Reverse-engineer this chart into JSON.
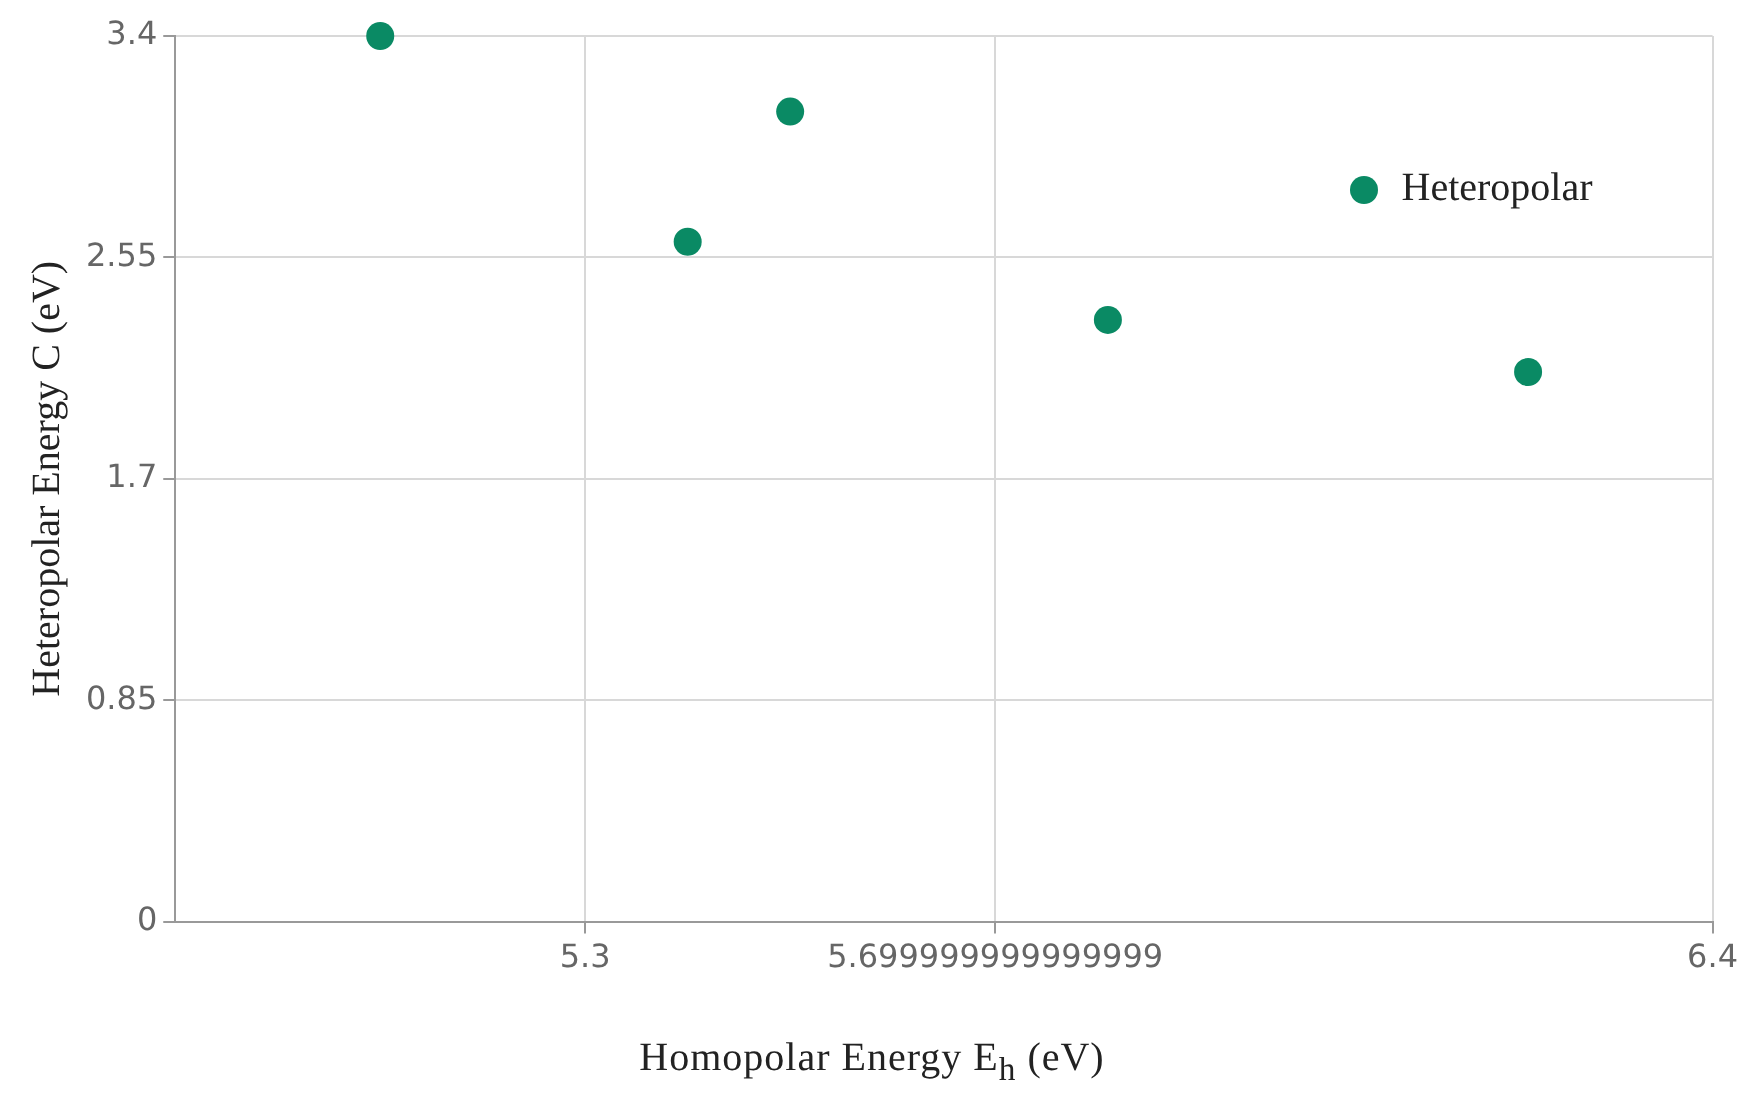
{
  "chart_data": {
    "type": "scatter",
    "xlabel": "Homopolar Energy E$_{h}$ (eV)",
    "ylabel": "Heteropolar Energy C (eV)",
    "x": [
      5.1,
      5.4,
      5.5,
      5.81,
      6.22
    ],
    "series": [
      {
        "name": "Heteropolar",
        "color": "#0a8a64",
        "values": [
          3.4,
          2.61,
          3.11,
          2.31,
          2.11
        ]
      }
    ],
    "xlim": [
      4.9,
      6.4
    ],
    "xticks": [
      5.3,
      {
        "value": 5.7,
        "label": "5.699999999999999"
      },
      6.4
    ],
    "ylim": [
      0,
      3.4
    ],
    "yticks": [
      0,
      0.85,
      1.7,
      2.55,
      3.4
    ],
    "grid": true,
    "legend": "top right",
    "marker": "circle"
  }
}
